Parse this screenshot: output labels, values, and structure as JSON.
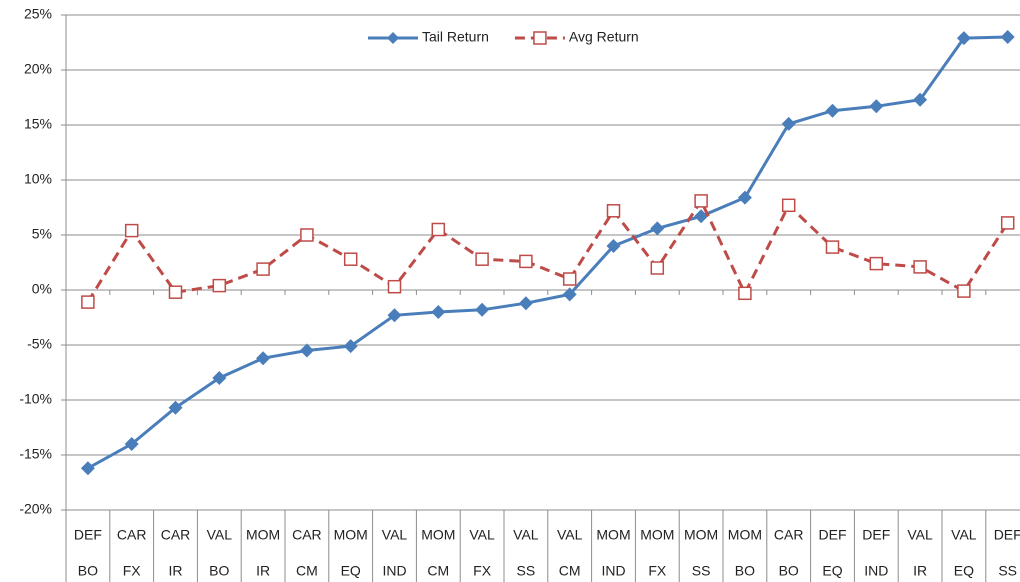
{
  "chart_data": {
    "type": "line",
    "categories": [
      [
        "DEF",
        "BO"
      ],
      [
        "CAR",
        "FX"
      ],
      [
        "CAR",
        "IR"
      ],
      [
        "VAL",
        "BO"
      ],
      [
        "MOM",
        "IR"
      ],
      [
        "CAR",
        "CM"
      ],
      [
        "MOM",
        "EQ"
      ],
      [
        "VAL",
        "IND"
      ],
      [
        "MOM",
        "CM"
      ],
      [
        "VAL",
        "FX"
      ],
      [
        "VAL",
        "SS"
      ],
      [
        "VAL",
        "CM"
      ],
      [
        "MOM",
        "IND"
      ],
      [
        "MOM",
        "FX"
      ],
      [
        "MOM",
        "SS"
      ],
      [
        "MOM",
        "BO"
      ],
      [
        "CAR",
        "BO"
      ],
      [
        "DEF",
        "EQ"
      ],
      [
        "DEF",
        "IND"
      ],
      [
        "VAL",
        "IR"
      ],
      [
        "VAL",
        "EQ"
      ],
      [
        "DEF",
        "SS"
      ]
    ],
    "series": [
      {
        "name": "Tail Return",
        "color": "#4a7ebb",
        "marker": "diamond",
        "dashed": false,
        "values": [
          -16.2,
          -14,
          -10.7,
          -8,
          -6.2,
          -5.5,
          -5.1,
          -2.3,
          -2,
          -1.8,
          -1.2,
          -0.4,
          4,
          5.6,
          6.7,
          8.4,
          15.1,
          16.3,
          16.7,
          17.3,
          22.9,
          23
        ]
      },
      {
        "name": "Avg Return",
        "color": "#be4b48",
        "marker": "square",
        "dashed": true,
        "values": [
          -1.1,
          5.4,
          -0.2,
          0.4,
          1.9,
          5.0,
          2.8,
          0.3,
          5.5,
          2.8,
          2.6,
          1.0,
          7.2,
          2.0,
          8.1,
          -0.3,
          7.7,
          3.9,
          2.4,
          2.1,
          -0.1,
          6.1
        ]
      }
    ],
    "ylim": [
      -20,
      25
    ],
    "yticks": [
      {
        "value": -20,
        "label": "-20%"
      },
      {
        "value": -15,
        "label": "-15%"
      },
      {
        "value": -10,
        "label": "-10%"
      },
      {
        "value": -5,
        "label": "-5%"
      },
      {
        "value": 0,
        "label": "0%"
      },
      {
        "value": 5,
        "label": "5%"
      },
      {
        "value": 10,
        "label": "10%"
      },
      {
        "value": 15,
        "label": "15%"
      },
      {
        "value": 20,
        "label": "20%"
      },
      {
        "value": 25,
        "label": "25%"
      }
    ],
    "grid": true,
    "legend": "top"
  }
}
